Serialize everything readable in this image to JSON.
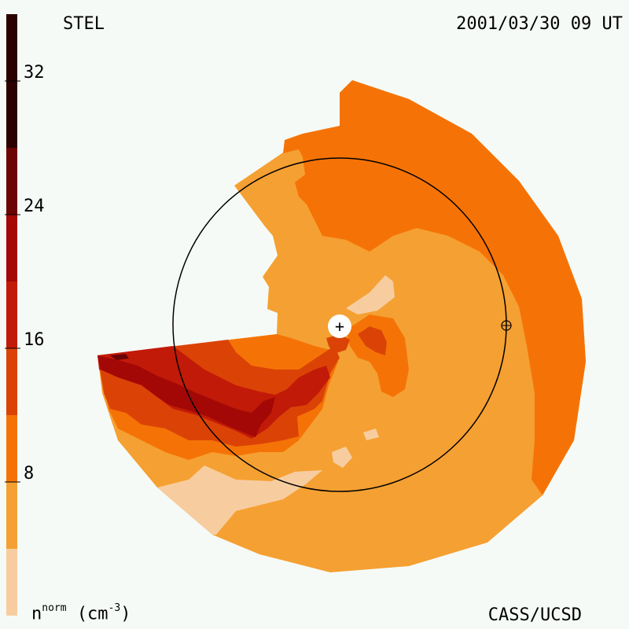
{
  "header": {
    "source": "STEL",
    "datetime": "2001/03/30 09 UT"
  },
  "footer": {
    "credit": "CASS/UCSD",
    "unit_main": "n",
    "unit_sup": "norm",
    "unit_rest": "(cm",
    "unit_exp": "-3",
    "unit_close": ")"
  },
  "chart_data": {
    "type": "heatmap",
    "colorbar": {
      "levels": [
        0,
        4,
        8,
        12,
        16,
        20,
        24,
        28,
        36
      ],
      "colors": [
        "#f7cda0",
        "#f5a032",
        "#f57306",
        "#db4306",
        "#c21a08",
        "#a30806",
        "#6b0404",
        "#2a0000"
      ],
      "tick_values": [
        8,
        16,
        24,
        32
      ],
      "tick_labels": [
        "8",
        "16",
        "24",
        "32"
      ]
    },
    "markers": {
      "sun": "+",
      "earth": "⊕"
    }
  }
}
